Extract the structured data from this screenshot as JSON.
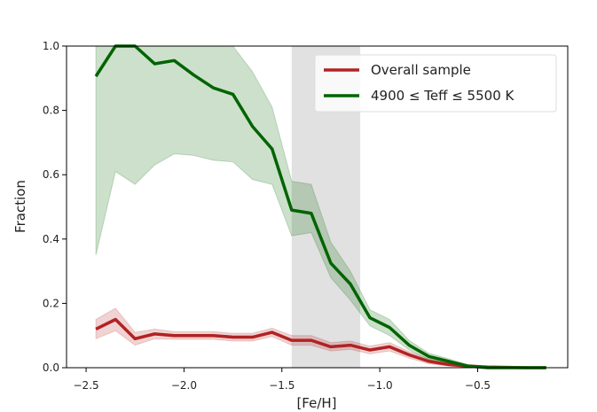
{
  "chart_data": {
    "type": "line",
    "xlabel": "[Fe/H]",
    "ylabel": "Fraction",
    "x": [
      -2.45,
      -2.35,
      -2.25,
      -2.15,
      -2.05,
      -1.95,
      -1.85,
      -1.75,
      -1.65,
      -1.55,
      -1.45,
      -1.35,
      -1.25,
      -1.15,
      -1.05,
      -0.95,
      -0.85,
      -0.75,
      -0.65,
      -0.55,
      -0.45,
      -0.35,
      -0.25,
      -0.15
    ],
    "series": [
      {
        "name": "Overall sample",
        "color": "#b22222",
        "values": [
          0.12,
          0.15,
          0.09,
          0.105,
          0.1,
          0.1,
          0.1,
          0.095,
          0.095,
          0.11,
          0.085,
          0.085,
          0.065,
          0.07,
          0.055,
          0.065,
          0.04,
          0.02,
          0.01,
          0.005,
          0.002,
          0.001,
          0,
          0
        ],
        "lower": [
          0.09,
          0.115,
          0.07,
          0.09,
          0.088,
          0.088,
          0.088,
          0.083,
          0.083,
          0.097,
          0.07,
          0.07,
          0.052,
          0.057,
          0.043,
          0.052,
          0.03,
          0.012,
          0.005,
          0.001,
          0,
          0,
          0,
          0
        ],
        "upper": [
          0.15,
          0.185,
          0.11,
          0.12,
          0.112,
          0.112,
          0.112,
          0.107,
          0.107,
          0.123,
          0.1,
          0.1,
          0.078,
          0.083,
          0.067,
          0.078,
          0.05,
          0.028,
          0.015,
          0.009,
          0.004,
          0.002,
          0.001,
          0
        ]
      },
      {
        "name": "4900 ≤ Teff ≤ 5500 K",
        "color": "#006400",
        "values": [
          0.906,
          1.0,
          1.0,
          0.945,
          0.955,
          0.91,
          0.87,
          0.85,
          0.75,
          0.68,
          0.49,
          0.48,
          0.325,
          0.26,
          0.155,
          0.125,
          0.07,
          0.035,
          0.02,
          0.005,
          0,
          0,
          0,
          0
        ],
        "lower": [
          0.35,
          0.61,
          0.57,
          0.63,
          0.665,
          0.66,
          0.645,
          0.64,
          0.585,
          0.57,
          0.41,
          0.42,
          0.28,
          0.21,
          0.13,
          0.1,
          0.055,
          0.025,
          0.012,
          0.002,
          0,
          0,
          0,
          0
        ],
        "upper": [
          1,
          1,
          1,
          1,
          1,
          1,
          1,
          1,
          0.92,
          0.81,
          0.58,
          0.57,
          0.39,
          0.3,
          0.18,
          0.15,
          0.085,
          0.045,
          0.028,
          0.01,
          0.004,
          0.002,
          0.001,
          0
        ]
      }
    ],
    "span": [
      -1.45,
      -1.1
    ],
    "xlim": [
      -2.6,
      -0.04
    ],
    "ylim": [
      0,
      1
    ],
    "xticks": [
      {
        "value": -2.5,
        "label": "−2.5"
      },
      {
        "value": -2.0,
        "label": "−2.0"
      },
      {
        "value": -1.5,
        "label": "−1.5"
      },
      {
        "value": -1.0,
        "label": "−1.0"
      },
      {
        "value": -0.5,
        "label": "−0.5"
      }
    ],
    "yticks": [
      {
        "value": 0,
        "label": "0.0"
      },
      0.2,
      0.4,
      0.6,
      0.8,
      {
        "value": 1,
        "label": "1.0"
      }
    ],
    "legend": "upper right"
  }
}
